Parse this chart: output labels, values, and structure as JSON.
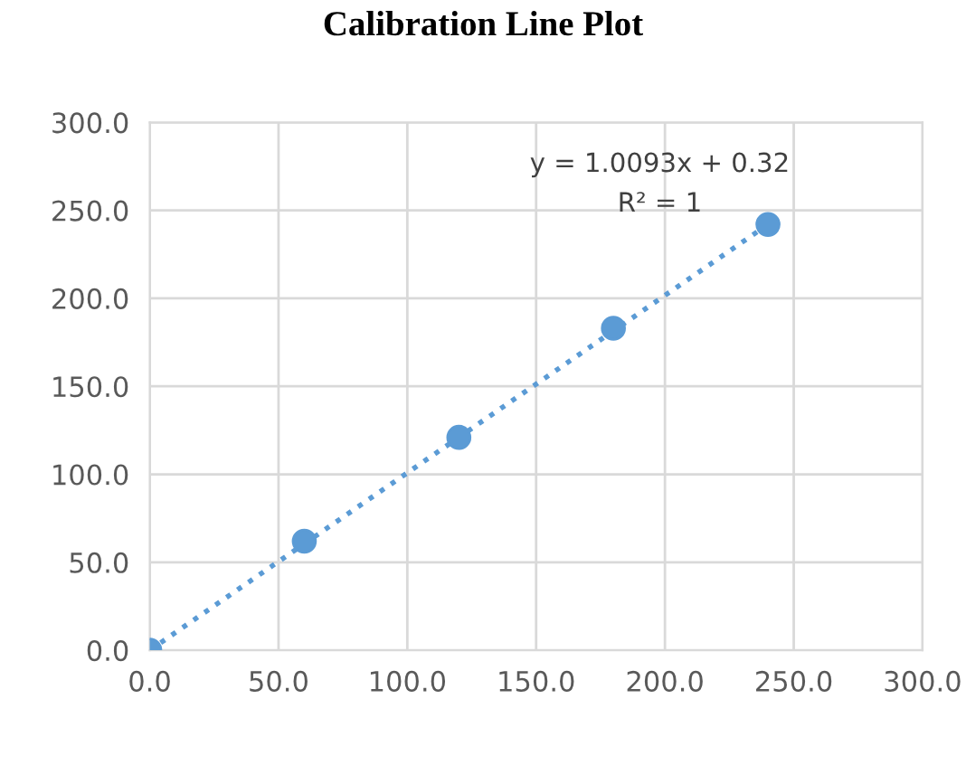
{
  "chart_data": {
    "type": "scatter",
    "title": "Calibration Line Plot",
    "series": [
      {
        "color": "#5b9bd5",
        "x": [
          0,
          60,
          120,
          180,
          240
        ],
        "values": [
          0,
          62,
          121,
          183,
          242
        ],
        "marker": "circle"
      },
      {
        "type": "line",
        "color": "#5b9bd5",
        "x": [
          0,
          240
        ],
        "values": [
          0,
          242
        ],
        "line_style": "dotted"
      }
    ],
    "annotations": [
      "y = 1.0093x + 0.32",
      "R² = 1"
    ],
    "xlim": [
      0,
      300
    ],
    "ylim": [
      0,
      300
    ],
    "xticks": [
      {
        "value": 0,
        "label": "0.0"
      },
      {
        "value": 50,
        "label": "50.0"
      },
      {
        "value": 100,
        "label": "100.0"
      },
      {
        "value": 150,
        "label": "150.0"
      },
      {
        "value": 200,
        "label": "200.0"
      },
      {
        "value": 250,
        "label": "250.0"
      },
      {
        "value": 300,
        "label": "300.0"
      }
    ],
    "yticks": [
      {
        "value": 0,
        "label": "0.0"
      },
      {
        "value": 50,
        "label": "50.0"
      },
      {
        "value": 100,
        "label": "100.0"
      },
      {
        "value": 150,
        "label": "150.0"
      },
      {
        "value": 200,
        "label": "200.0"
      },
      {
        "value": 250,
        "label": "250.0"
      },
      {
        "value": 300,
        "label": "300.0"
      }
    ],
    "grid": true
  }
}
